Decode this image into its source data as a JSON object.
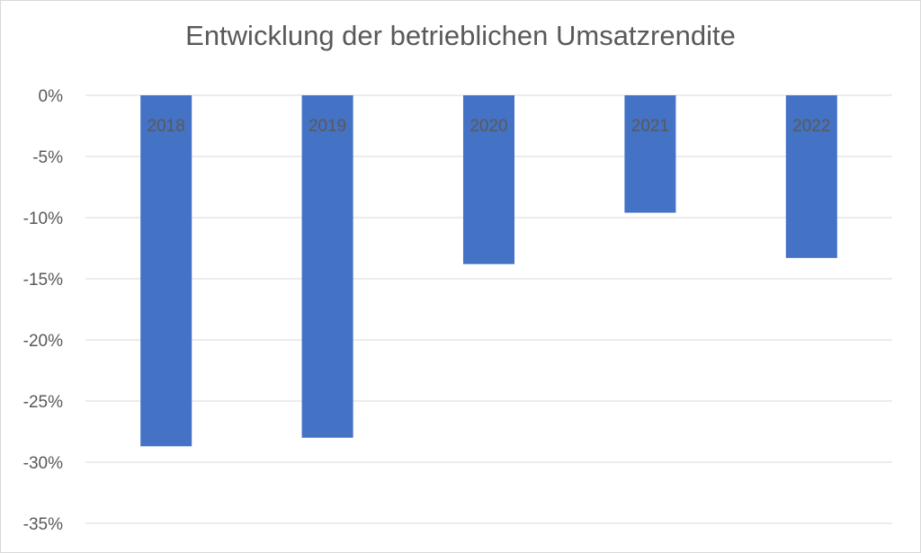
{
  "chart_data": {
    "type": "bar",
    "title": "Entwicklung der betrieblichen Umsatzrendite",
    "categories": [
      "2018",
      "2019",
      "2020",
      "2021",
      "2022"
    ],
    "values": [
      -28.7,
      -28.0,
      -13.8,
      -9.6,
      -13.3
    ],
    "ylim": [
      -35,
      0
    ],
    "yticks": [
      0,
      -5,
      -10,
      -15,
      -20,
      -25,
      -30,
      -35
    ],
    "ytick_labels": [
      "0%",
      "-5%",
      "-10%",
      "-15%",
      "-20%",
      "-25%",
      "-30%",
      "-35%"
    ],
    "xlabel": "",
    "ylabel": "",
    "grid": true,
    "bar_color": "#4472c4",
    "legend": "none"
  }
}
